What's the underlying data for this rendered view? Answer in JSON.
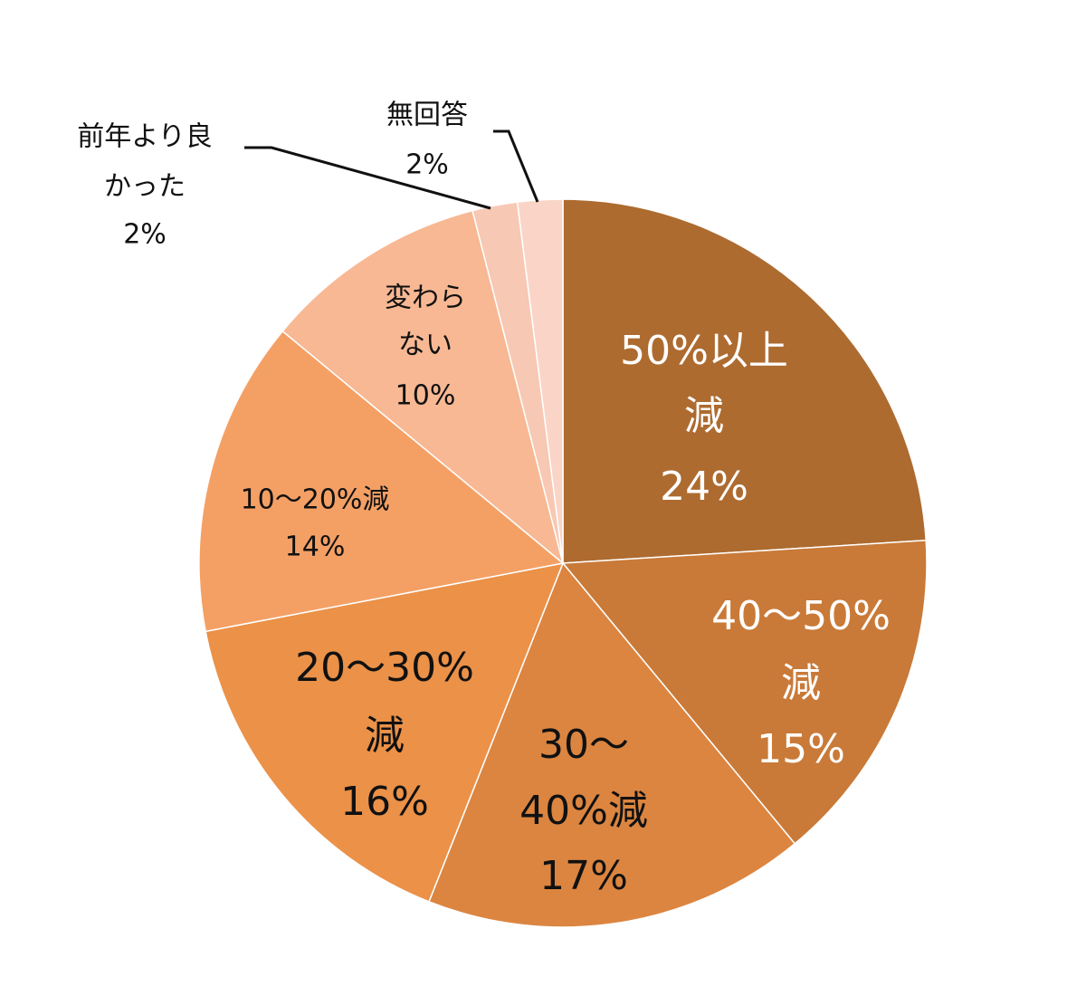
{
  "chart_data": {
    "type": "pie",
    "categories": [
      [
        "50%以上",
        "減"
      ],
      [
        "40～50%",
        "減"
      ],
      [
        "30～",
        "40%減"
      ],
      [
        "20～30%",
        "減"
      ],
      [
        "10～20%減"
      ],
      [
        "変わら",
        "ない"
      ],
      [
        "前年より良",
        "かった"
      ],
      [
        "無回答"
      ]
    ],
    "values": [
      24,
      15,
      17,
      16,
      14,
      10,
      2,
      2
    ],
    "value_labels": [
      "24%",
      "15%",
      "17%",
      "16%",
      "14%",
      "10%",
      "2%",
      "2%"
    ],
    "colors": [
      "#ad6b30",
      "#c97a38",
      "#dc8540",
      "#eb9148",
      "#f4a065",
      "#f7b893",
      "#f7c8b3",
      "#fad5c7"
    ]
  }
}
